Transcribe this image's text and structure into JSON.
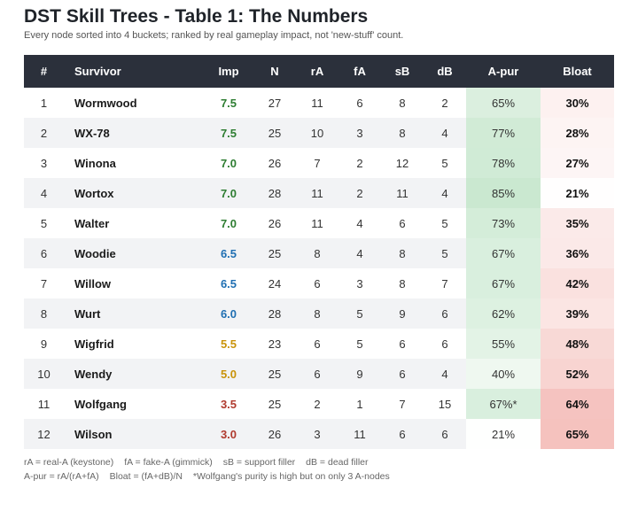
{
  "title": "DST Skill Trees - Table 1: The Numbers",
  "subtitle": "Every node sorted into 4 buckets; ranked by real gameplay impact, not 'new-stuff' count.",
  "table": {
    "columns": [
      "#",
      "Survivor",
      "Imp",
      "N",
      "rA",
      "fA",
      "sB",
      "dB",
      "A-pur",
      "Bloat"
    ],
    "rows": [
      [
        "1",
        "Wormwood",
        "7.5",
        "27",
        "11",
        "6",
        "8",
        "2",
        "65%",
        "30%"
      ],
      [
        "2",
        "WX-78",
        "7.5",
        "25",
        "10",
        "3",
        "8",
        "4",
        "77%",
        "28%"
      ],
      [
        "3",
        "Winona",
        "7.0",
        "26",
        "7",
        "2",
        "12",
        "5",
        "78%",
        "27%"
      ],
      [
        "4",
        "Wortox",
        "7.0",
        "28",
        "11",
        "2",
        "11",
        "4",
        "85%",
        "21%"
      ],
      [
        "5",
        "Walter",
        "7.0",
        "26",
        "11",
        "4",
        "6",
        "5",
        "73%",
        "35%"
      ],
      [
        "6",
        "Woodie",
        "6.5",
        "25",
        "8",
        "4",
        "8",
        "5",
        "67%",
        "36%"
      ],
      [
        "7",
        "Willow",
        "6.5",
        "24",
        "6",
        "3",
        "8",
        "7",
        "67%",
        "42%"
      ],
      [
        "8",
        "Wurt",
        "6.0",
        "28",
        "8",
        "5",
        "9",
        "6",
        "62%",
        "39%"
      ],
      [
        "9",
        "Wigfrid",
        "5.5",
        "23",
        "6",
        "5",
        "6",
        "6",
        "55%",
        "48%"
      ],
      [
        "10",
        "Wendy",
        "5.0",
        "25",
        "6",
        "9",
        "6",
        "4",
        "40%",
        "52%"
      ],
      [
        "11",
        "Wolfgang",
        "3.5",
        "25",
        "2",
        "1",
        "7",
        "15",
        "67%*",
        "64%"
      ],
      [
        "12",
        "Wilson",
        "3.0",
        "26",
        "3",
        "11",
        "6",
        "6",
        "21%",
        "65%"
      ]
    ]
  },
  "footnotes": [
    [
      "rA = real-A (keystone)",
      "fA = fake-A (gimmick)",
      "sB = support filler",
      "dB = dead filler"
    ],
    [
      "A-pur = rA/(rA+fA)",
      "Bloat = (fA+dB)/N",
      "*Wolfgang's purity is high but on only 3 A-nodes"
    ]
  ]
}
